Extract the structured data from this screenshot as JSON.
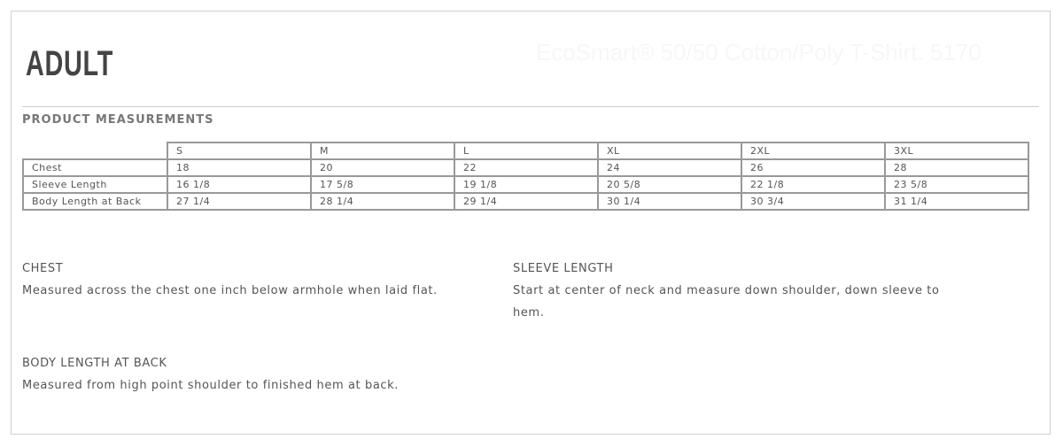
{
  "header": {
    "title": "ADULT",
    "product_name": "EcoSmart® 50/50 Cotton/Poly T-Shirt. 5170"
  },
  "section_title": "PRODUCT MEASUREMENTS",
  "table": {
    "sizes": [
      "S",
      "M",
      "L",
      "XL",
      "2XL",
      "3XL"
    ],
    "rows": [
      {
        "label": "Chest",
        "values": [
          "18",
          "20",
          "22",
          "24",
          "26",
          "28"
        ]
      },
      {
        "label": "Sleeve Length",
        "values": [
          "16 1/8",
          "17 5/8",
          "19 1/8",
          "20 5/8",
          "22 1/8",
          "23 5/8"
        ]
      },
      {
        "label": "Body Length at Back",
        "values": [
          "27 1/4",
          "28 1/4",
          "29 1/4",
          "30 1/4",
          "30 3/4",
          "31 1/4"
        ]
      }
    ]
  },
  "descriptions": {
    "chest": {
      "title": "CHEST",
      "text": "Measured across the chest one inch below armhole when laid flat."
    },
    "sleeve": {
      "title": "SLEEVE LENGTH",
      "text": "Start at center of neck and measure down shoulder, down sleeve to hem."
    },
    "body": {
      "title": "BODY LENGTH AT BACK",
      "text": "Measured from high point shoulder to finished hem at back."
    }
  }
}
